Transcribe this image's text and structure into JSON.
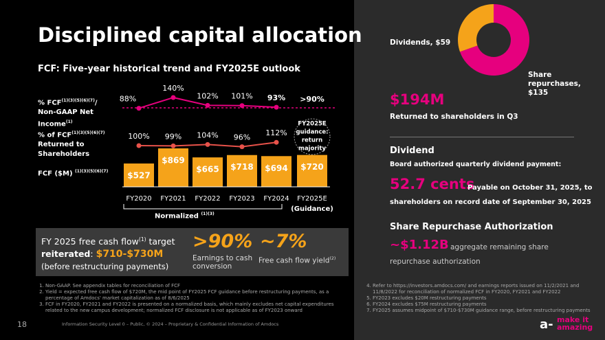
{
  "title": "Disciplined capital allocation",
  "subtitle": "FCF: Five-year historical trend and FY2025E outlook",
  "row_labels": {
    "ratio": [
      "% FCF",
      "(1)(3)(5)(6)(7)",
      "/",
      "Non-GAAP Net",
      "Income",
      "(1)"
    ],
    "returned": [
      "% of FCF",
      "(1)(3)(5)(6)(7)",
      "Returned to",
      "Shareholders"
    ],
    "fcf": [
      "FCF ($M) ",
      "(1)(3)(5)(6)(7)"
    ]
  },
  "chart_data": [
    {
      "type": "bar",
      "categories": [
        "FY2020",
        "FY2021",
        "FY2022",
        "FY2023",
        "FY2024",
        "FY2025E"
      ],
      "values": [
        527,
        869,
        665,
        718,
        694,
        720
      ],
      "value_labels": [
        "$527",
        "$869",
        "$665",
        "$718",
        "$694",
        "$720"
      ],
      "color": "#f5a31a",
      "guidance_note": "(Guidance)",
      "bracket_label": [
        "Normalized ",
        "(1)(3)"
      ]
    },
    {
      "type": "line",
      "categories": [
        "FY2020",
        "FY2021",
        "FY2022",
        "FY2023",
        "FY2024"
      ],
      "values": [
        88,
        140,
        102,
        101,
        93
      ],
      "value_labels": [
        "88%",
        "140%",
        "102%",
        "101%",
        "93%"
      ],
      "color": "#e6007e",
      "guidance": {
        "value": 90,
        "label": ">90%"
      }
    },
    {
      "type": "line",
      "categories": [
        "FY2020",
        "FY2021",
        "FY2022",
        "FY2023",
        "FY2024"
      ],
      "values": [
        100,
        99,
        104,
        96,
        112
      ],
      "value_labels": [
        "100%",
        "99%",
        "104%",
        "96%",
        "112%"
      ],
      "color": "#e8524a",
      "guidance_text": [
        "FY2025E",
        "guidance:",
        "return",
        "majority"
      ]
    },
    {
      "type": "pie",
      "labels": [
        "Dividends, $59",
        "Share repurchases, $135"
      ],
      "values": [
        59,
        135
      ],
      "colors": [
        "#f5a31a",
        "#e6007e"
      ]
    }
  ],
  "target_box": {
    "line1": [
      "FY 2025 free cash flow",
      "(1)",
      " target"
    ],
    "line2": [
      "reiterated",
      ": ",
      "$710-$730M"
    ],
    "line3": "(before restructuring payments)",
    "kpi1": {
      "value": ">90%",
      "label": "Earnings to cash conversion"
    },
    "kpi2": {
      "value": "~7%",
      "label": [
        "Free cash flow yield",
        "(2)"
      ]
    }
  },
  "right": {
    "total": "$194M",
    "total_label": "Returned to shareholders in Q3",
    "dividend_title": "Dividend",
    "dividend_sub": "Board authorized quarterly dividend payment:",
    "dividend_value": "52.7 cents",
    "dividend_text1": "Payable on October 31, 2025, to",
    "dividend_text2": "shareholders on record date of September 30, 2025",
    "repurchase_title": "Share Repurchase Authorization",
    "repurchase_value": "~$1.12B",
    "repurchase_text1": "aggregate remaining share",
    "repurchase_text2": "repurchase authorization"
  },
  "footnotes_left": [
    "Non-GAAP. See appendix tables for reconciliation of FCF",
    "Yield = expected free cash flow of $720M, the mid point of FY2025 FCF guidance before restructuring payments, as a percentage of Amdocs' market capitalization as of 8/6/2025",
    "FCF in FY2020, FY2021 and FY2022 is presented on a normalized basis, which mainly excludes net capital expenditures related to the new campus development; normalized FCF disclosure is not applicable as of FY2023 onward"
  ],
  "footnotes_right": [
    "Refer to https://investors.amdocs.com/ and earnings reports issued on 11/2/2021 and 11/8/2022 for reconciliation of normalized FCF in FY2020, FY2021 and FY2022",
    "FY2023 excludes $20M restructuring payments",
    "FY2024 excludes $75M restructuring payments",
    "FY2025 assumes midpoint of $710-$730M guidance range, before restructuring payments"
  ],
  "footer": {
    "page": "18",
    "text": "Information Security Level 0 – Public, © 2024 – Proprietary & Confidential Information of Amdocs",
    "logo1": "make it",
    "logo2": "amazing"
  }
}
